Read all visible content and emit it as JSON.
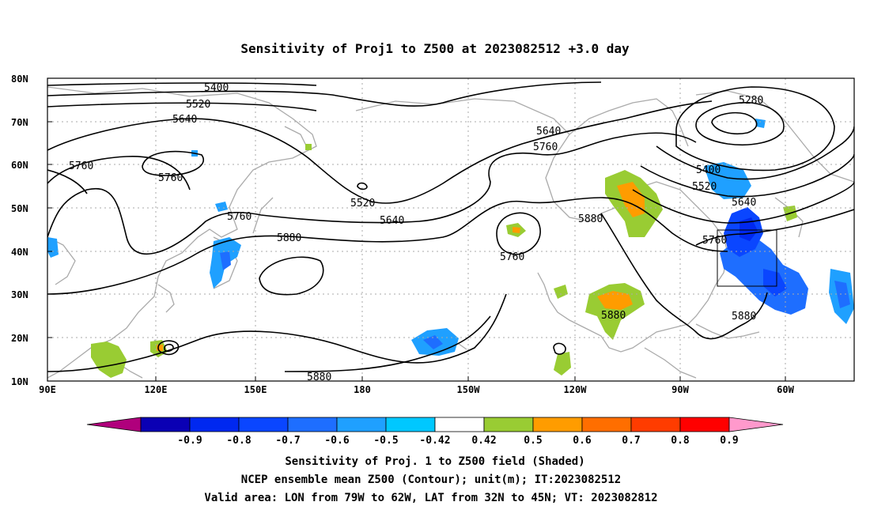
{
  "title": "Sensitivity of Proj1 to Z500 at 2023082512 +3.0 day",
  "lat_labels": [
    "80N",
    "70N",
    "60N",
    "50N",
    "40N",
    "30N",
    "20N",
    "10N"
  ],
  "lon_labels": [
    "90E",
    "120E",
    "150E",
    "180",
    "150W",
    "120W",
    "90W",
    "60W"
  ],
  "contour_labels": [
    "5400",
    "5520",
    "5640",
    "5760",
    "5760",
    "5760",
    "5880",
    "5520",
    "5640",
    "5760",
    "5640",
    "5760",
    "5880",
    "5280",
    "5400",
    "5520",
    "5640",
    "5760",
    "5880",
    "5880",
    "5880"
  ],
  "colorbar": {
    "labels": [
      "-0.9",
      "-0.8",
      "-0.7",
      "-0.6",
      "-0.5",
      "-0.42",
      "0.42",
      "0.5",
      "0.6",
      "0.7",
      "0.8",
      "0.9"
    ],
    "colors": [
      "#b0007c",
      "#0a00b4",
      "#0028f0",
      "#0a46ff",
      "#1e6eff",
      "#1fa0ff",
      "#00c8ff",
      "#ffffff",
      "#99cc33",
      "#ff9c00",
      "#ff6e00",
      "#ff3c00",
      "#ff0000",
      "#ff99cc"
    ]
  },
  "valid_box": {
    "lon": [
      -79,
      -62
    ],
    "lat": [
      32,
      45
    ]
  },
  "caption": {
    "line1": "Sensitivity of Proj. 1 to Z500 field (Shaded)",
    "line2": "NCEP ensemble mean Z500 (Contour); unit(m); IT:2023082512",
    "line3": "Valid area: LON from 79W to 62W, LAT from 32N to 45N; VT: 2023082812"
  }
}
